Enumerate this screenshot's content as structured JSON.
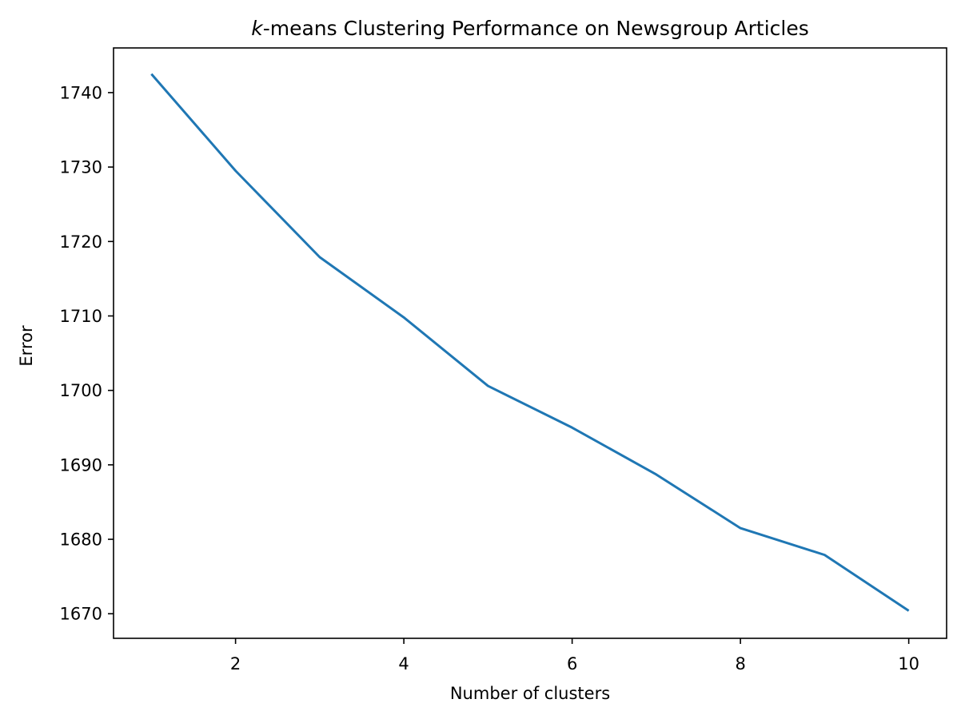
{
  "chart_data": {
    "type": "line",
    "title": {
      "italic_part": "k",
      "rest": "-means Clustering Performance on Newsgroup Articles"
    },
    "xlabel": "Number of clusters",
    "ylabel": "Error",
    "xlim": [
      0.55,
      10.45
    ],
    "ylim": [
      1666.7,
      1746.0
    ],
    "x_ticks": [
      2,
      4,
      6,
      8,
      10
    ],
    "y_ticks": [
      1670,
      1680,
      1690,
      1700,
      1710,
      1720,
      1730,
      1740
    ],
    "grid": false,
    "series": [
      {
        "color": "#1f77b4",
        "x": [
          1,
          2,
          3,
          4,
          5,
          6,
          7,
          8,
          9,
          10
        ],
        "y": [
          1742.5,
          1729.5,
          1717.9,
          1709.8,
          1700.6,
          1695.0,
          1688.7,
          1681.5,
          1677.9,
          1670.4
        ]
      }
    ]
  }
}
